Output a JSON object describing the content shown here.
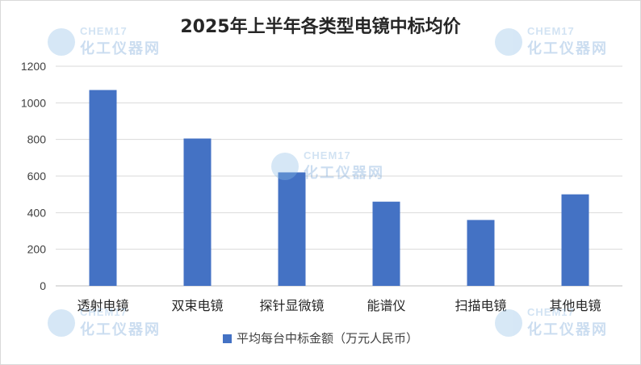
{
  "chart_data": {
    "type": "bar",
    "title": "2025年上半年各类型电镜中标均价",
    "categories": [
      "透射电镜",
      "双束电镜",
      "探针显微镜",
      "能谱仪",
      "扫描电镜",
      "其他电镜"
    ],
    "series": [
      {
        "name": "平均每台中标金额（万元人民币）",
        "values": [
          1070,
          805,
          620,
          460,
          360,
          500
        ]
      }
    ],
    "yticks": [
      0,
      200,
      400,
      600,
      800,
      1000,
      1200
    ],
    "ylim": [
      0,
      1200
    ],
    "grid": true,
    "legend_position": "bottom",
    "bar_color": "#4472c4"
  },
  "watermark": {
    "brand_en": "CHEM17",
    "brand_cn": "化工仪器网"
  }
}
